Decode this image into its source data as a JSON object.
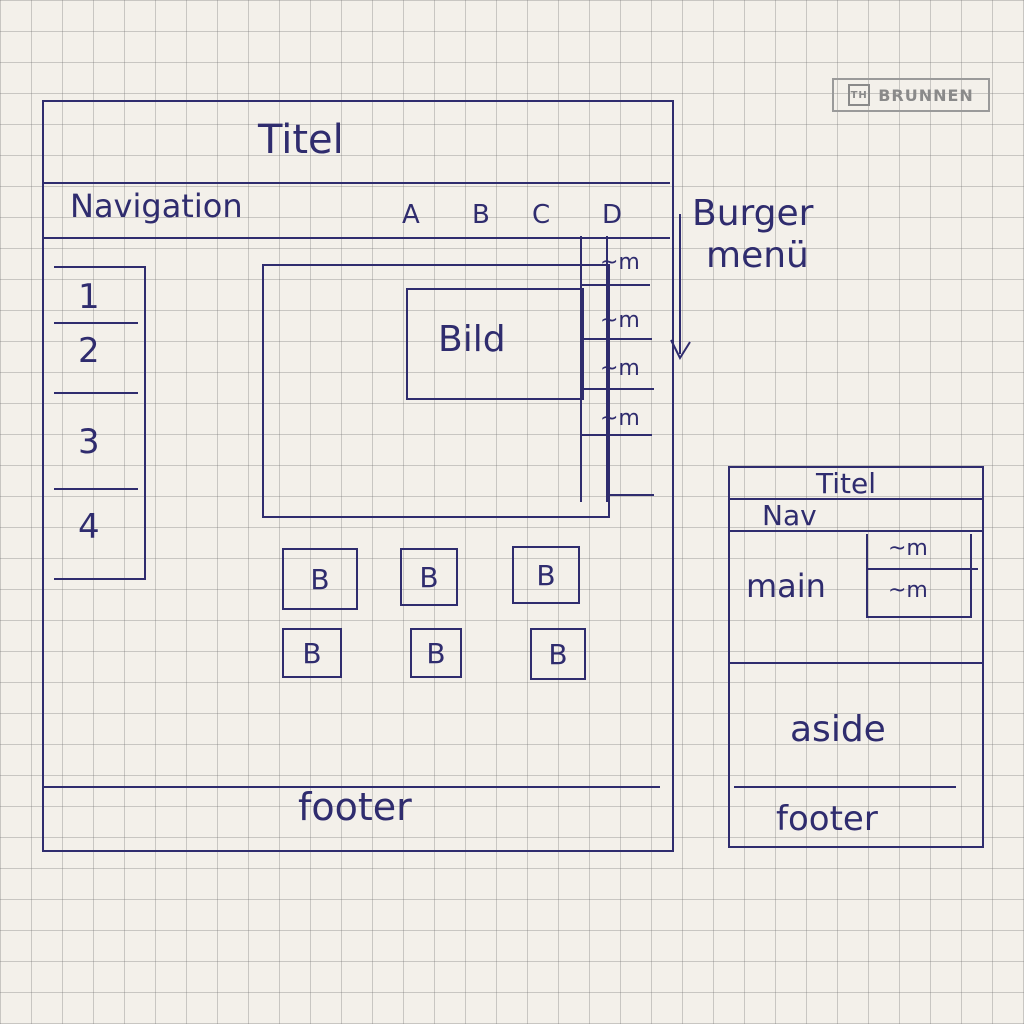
{
  "logo": {
    "text": "BRUNNEN",
    "mark": "TH"
  },
  "desktop": {
    "title": "Titel",
    "navigation": "Navigation",
    "nav_items": [
      "A",
      "B",
      "C",
      "D"
    ],
    "sidebar_items": [
      "1",
      "2",
      "3",
      "4"
    ],
    "image_label": "Bild",
    "burger_label_line1": "Burger",
    "burger_label_line2": "menü",
    "burger_items": [
      "~m",
      "~m",
      "~m",
      "~m"
    ],
    "buttons": [
      "B",
      "B",
      "B",
      "B",
      "B",
      "B"
    ],
    "footer": "footer"
  },
  "mobile": {
    "title": "Titel",
    "nav": "Nav",
    "main": "main",
    "menu_items": [
      "~m",
      "~m"
    ],
    "aside": "aside",
    "footer": "footer"
  }
}
